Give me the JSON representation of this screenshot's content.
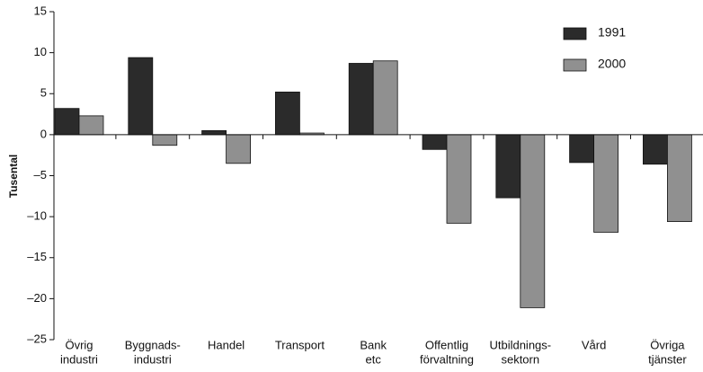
{
  "chart_data": {
    "type": "bar",
    "y_label": "Tusental",
    "categories": [
      [
        "Övrig",
        "industri"
      ],
      [
        "Byggnads-",
        "industri"
      ],
      [
        "Handel"
      ],
      [
        "Transport"
      ],
      [
        "Bank",
        "etc"
      ],
      [
        "Offentlig",
        "förvaltning"
      ],
      [
        "Utbildnings-",
        "sektorn"
      ],
      [
        "Vård"
      ],
      [
        "Övriga",
        "tjänster"
      ]
    ],
    "series": [
      {
        "name": "1991",
        "color": "#2b2b2b",
        "values": [
          3.2,
          9.4,
          0.5,
          5.2,
          8.7,
          -1.8,
          -7.7,
          -3.4,
          -3.6
        ]
      },
      {
        "name": "2000",
        "color": "#909090",
        "values": [
          2.3,
          -1.3,
          -3.5,
          0.2,
          9.0,
          -10.8,
          -21.1,
          -11.9,
          -10.6
        ]
      }
    ],
    "ylim": [
      -25,
      15
    ],
    "yticks": [
      {
        "value": -25,
        "label": "–25"
      },
      {
        "value": -20,
        "label": "–20"
      },
      {
        "value": -15,
        "label": "–15"
      },
      {
        "value": -10,
        "label": "–10"
      },
      {
        "value": -5,
        "label": "–5"
      },
      0,
      5,
      10,
      15
    ],
    "legend": "top-right"
  }
}
